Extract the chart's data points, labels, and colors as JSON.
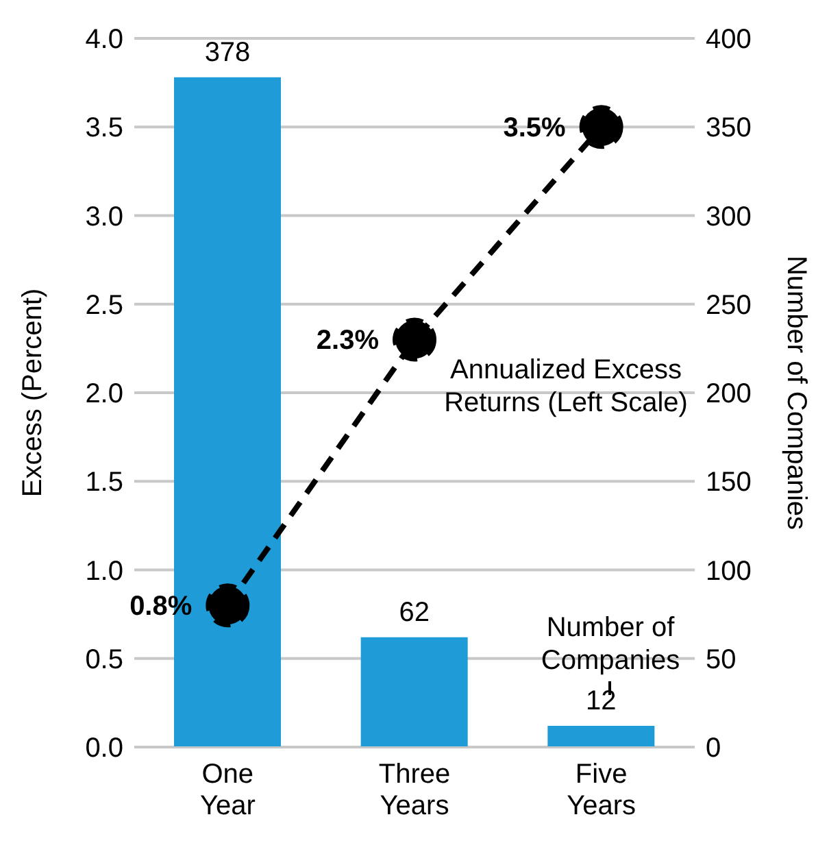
{
  "chart_data": {
    "type": "bar",
    "categories": [
      "One Year",
      "Three Years",
      "Five Years"
    ],
    "ylabel": "Excess (Percent)",
    "y2label": "Number of Companies",
    "ylim": [
      0,
      4
    ],
    "yticks": [
      {
        "value": 0,
        "label": "0.0"
      },
      {
        "value": 0.5,
        "label": "0.5"
      },
      {
        "value": 1,
        "label": "1.0"
      },
      {
        "value": 1.5,
        "label": "1.5"
      },
      {
        "value": 2,
        "label": "2.0"
      },
      {
        "value": 2.5,
        "label": "2.5"
      },
      {
        "value": 3,
        "label": "3.0"
      },
      {
        "value": 3.5,
        "label": "3.5"
      },
      {
        "value": 4,
        "label": "4.0"
      }
    ],
    "y2lim": [
      0,
      400
    ],
    "y2ticks": [
      0,
      50,
      100,
      150,
      200,
      250,
      300,
      350,
      400
    ],
    "grid": "y",
    "legend": false,
    "marker": "circle",
    "line_style": "dashed",
    "series": [
      {
        "axis": "y2",
        "name": "Number of Companies",
        "color": "#1f9bd7",
        "values": [
          378,
          62,
          12
        ],
        "value_labels": [
          "378",
          "62",
          "12"
        ]
      },
      {
        "type": "line",
        "axis": "y",
        "name": "Annualized Excess Returns (Left Scale)",
        "color": "#000000",
        "values": [
          0.8,
          2.3,
          3.5
        ],
        "value_labels": [
          "0.8%",
          "2.3%",
          "3.5%"
        ]
      }
    ]
  }
}
